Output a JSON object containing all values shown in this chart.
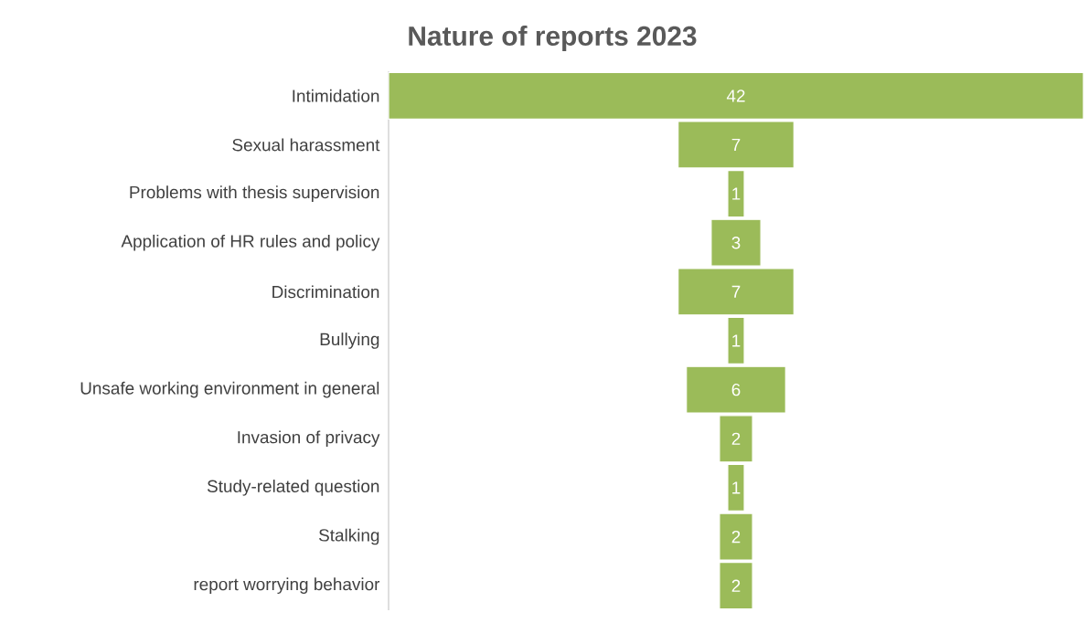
{
  "chart_data": {
    "type": "other",
    "title": "Nature of reports 2023",
    "categories": [
      "Intimidation",
      "Sexual harassment",
      "Problems with thesis supervision",
      "Application of HR rules and policy",
      "Discrimination",
      "Bullying",
      "Unsafe working environment in general",
      "Invasion of privacy",
      "Study-related question",
      "Stalking",
      "report worrying behavior"
    ],
    "values": [
      42,
      7,
      1,
      3,
      7,
      1,
      6,
      2,
      1,
      2,
      2
    ],
    "color": "#9bbb59",
    "data_labels": true
  }
}
